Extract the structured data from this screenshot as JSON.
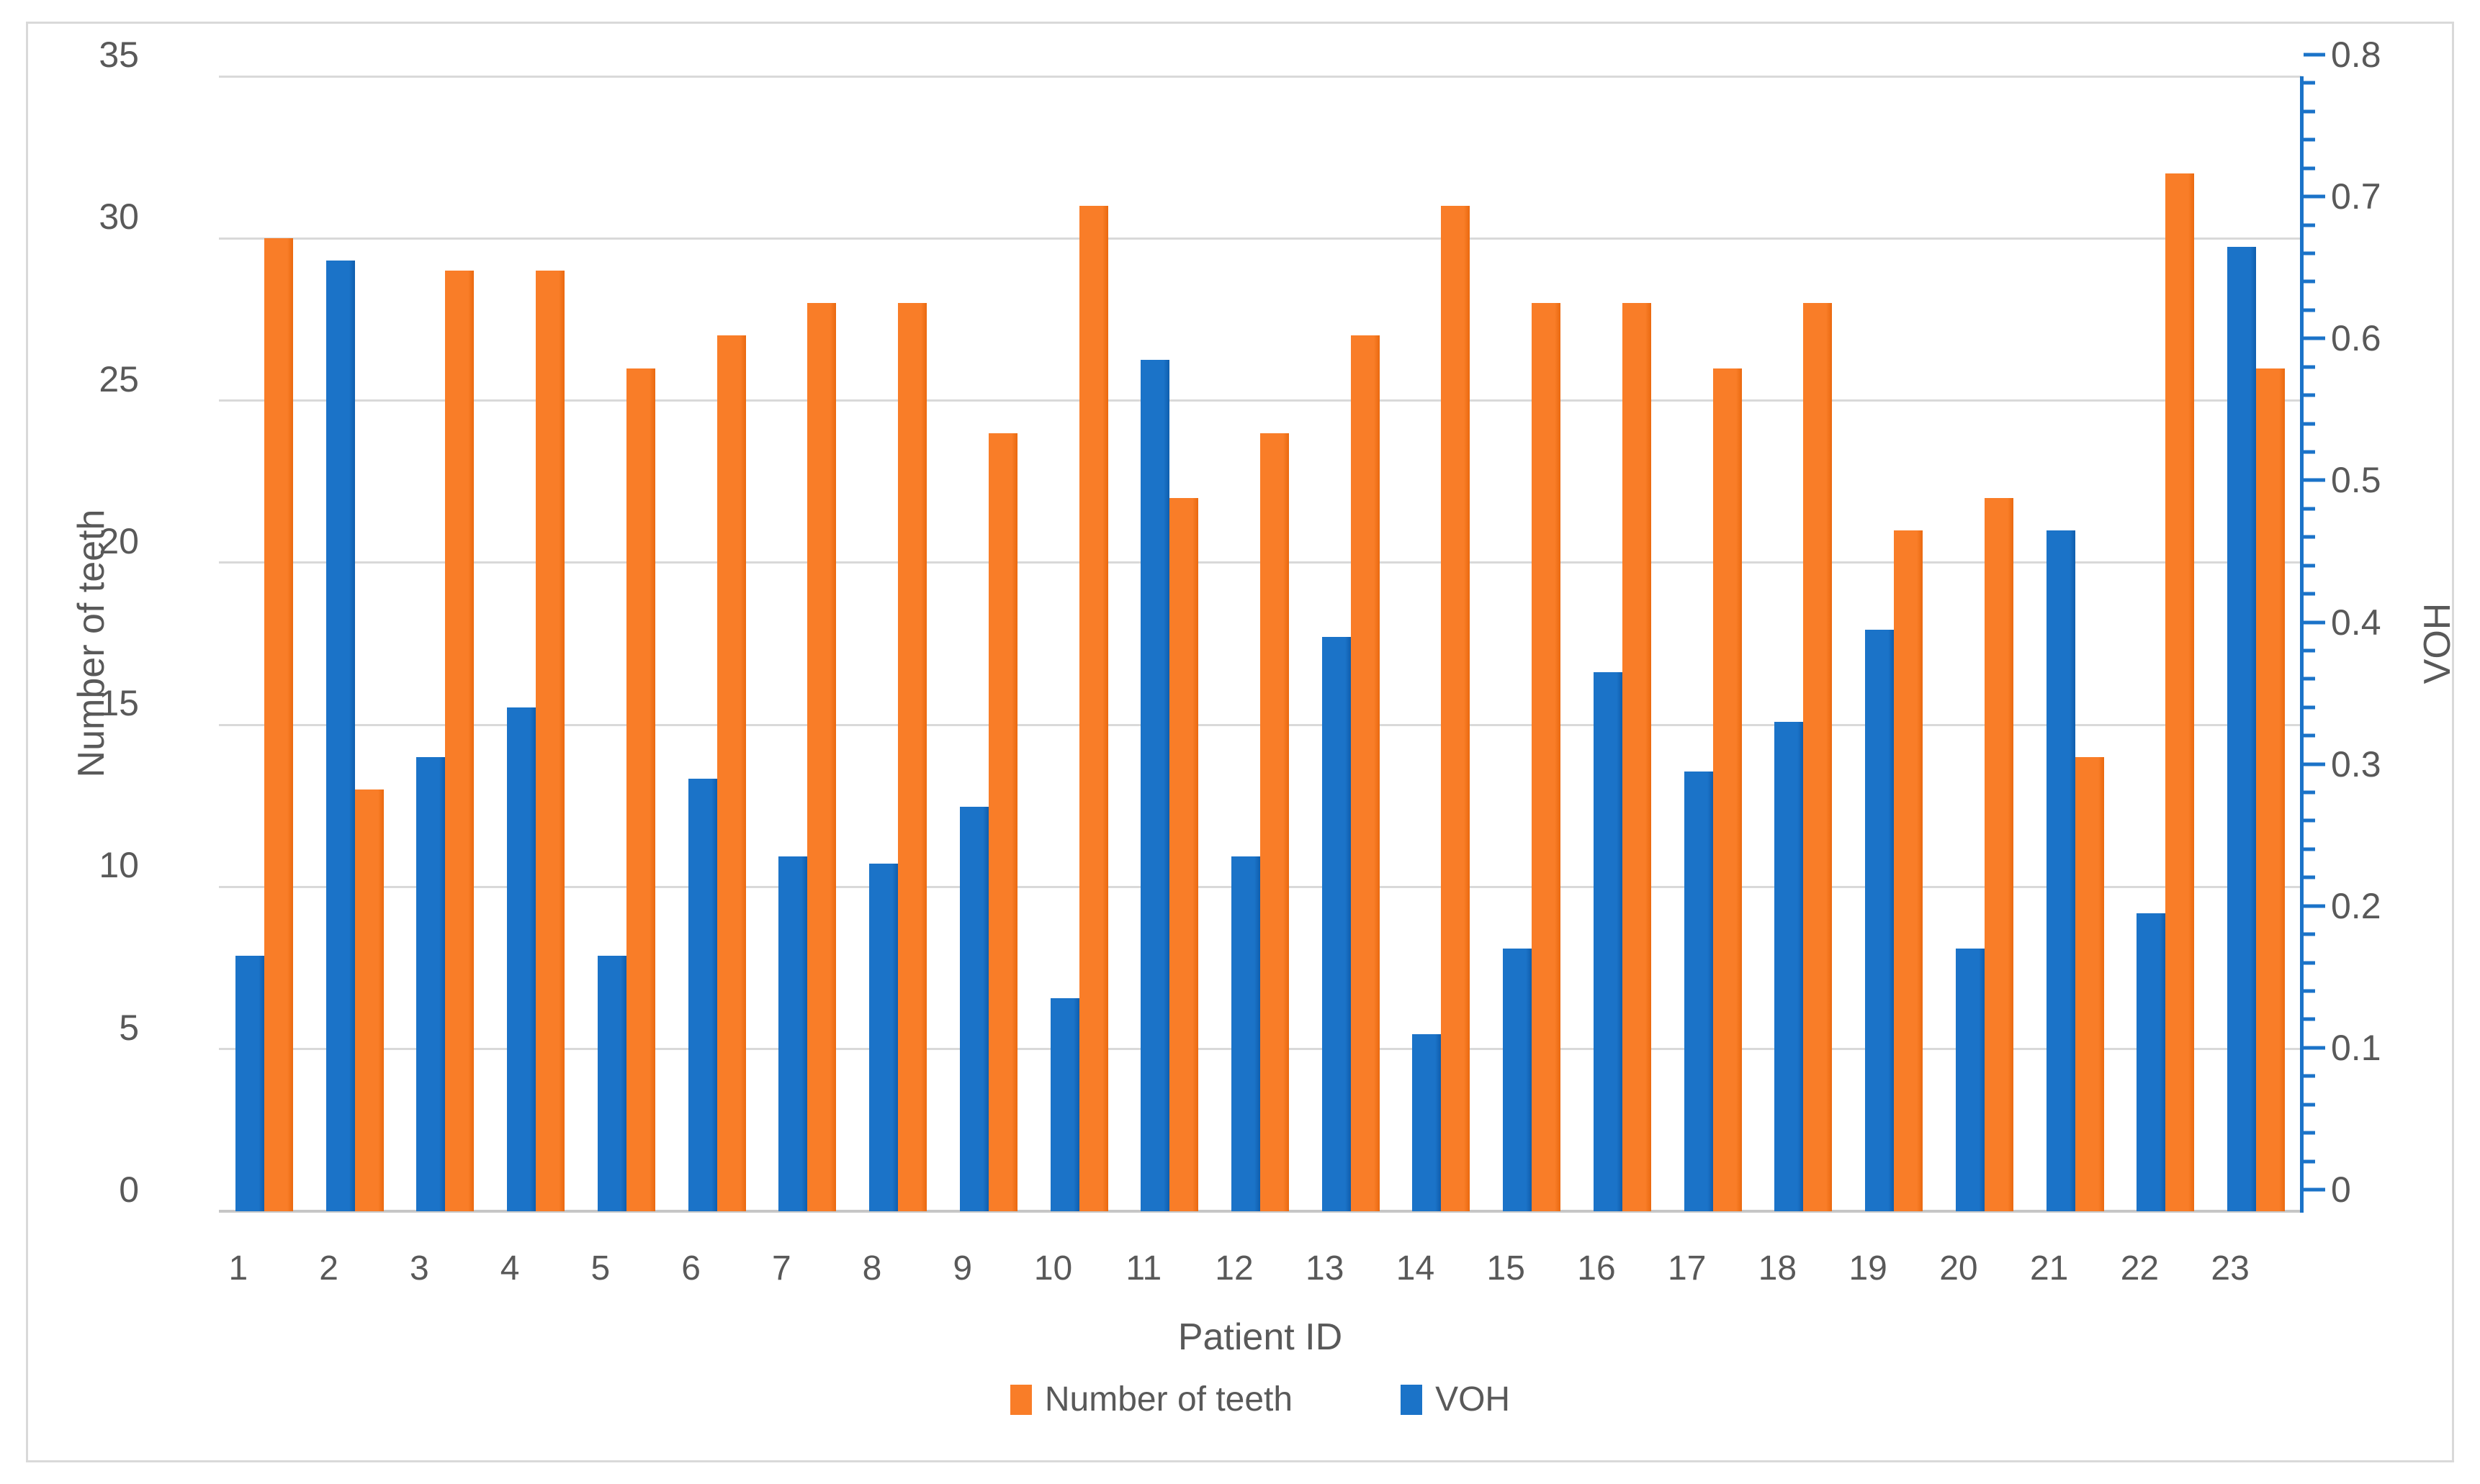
{
  "chart_data": {
    "type": "bar",
    "title": "",
    "xlabel": "Patient ID",
    "ylabel_left": "Number of teeth",
    "ylabel_right": "VOH",
    "categories": [
      "1",
      "2",
      "3",
      "4",
      "5",
      "6",
      "7",
      "8",
      "9",
      "10",
      "11",
      "12",
      "13",
      "14",
      "15",
      "16",
      "17",
      "18",
      "19",
      "20",
      "21",
      "22",
      "23"
    ],
    "series": [
      {
        "name": "Number of teeth",
        "axis": "left",
        "color": "#f97d28",
        "edge_color": "#ea690f",
        "values": [
          30,
          13,
          29,
          29,
          26,
          27,
          28,
          28,
          24,
          31,
          22,
          24,
          27,
          31,
          28,
          28,
          26,
          28,
          21,
          22,
          14,
          32,
          26
        ]
      },
      {
        "name": "VOH",
        "axis": "right",
        "color": "#1b73c8",
        "edge_color": "#0f5ead",
        "values": [
          0.18,
          0.67,
          0.32,
          0.355,
          0.18,
          0.305,
          0.25,
          0.245,
          0.285,
          0.15,
          0.6,
          0.25,
          0.405,
          0.125,
          0.185,
          0.38,
          0.31,
          0.345,
          0.41,
          0.185,
          0.48,
          0.21,
          0.68
        ]
      }
    ],
    "left_axis": {
      "min": 0,
      "max": 35,
      "step": 5,
      "tick_labels": [
        "0",
        "5",
        "10",
        "15",
        "20",
        "25",
        "30",
        "35"
      ]
    },
    "right_axis": {
      "min": 0,
      "max": 0.8,
      "step": 0.1,
      "minor_step": 0.02,
      "tick_labels": [
        "0",
        "0.1",
        "0.2",
        "0.3",
        "0.4",
        "0.5",
        "0.6",
        "0.7",
        "0.8"
      ]
    },
    "grid": "horizontal",
    "legend_position": "bottom"
  },
  "colors": {
    "background": "#ffffff",
    "chart_border": "#d9d9d9",
    "gridline": "#d9d9d9",
    "x_axis_line": "#c6c6c6",
    "right_axis_line": "#1b73c8",
    "text": "#595959"
  }
}
